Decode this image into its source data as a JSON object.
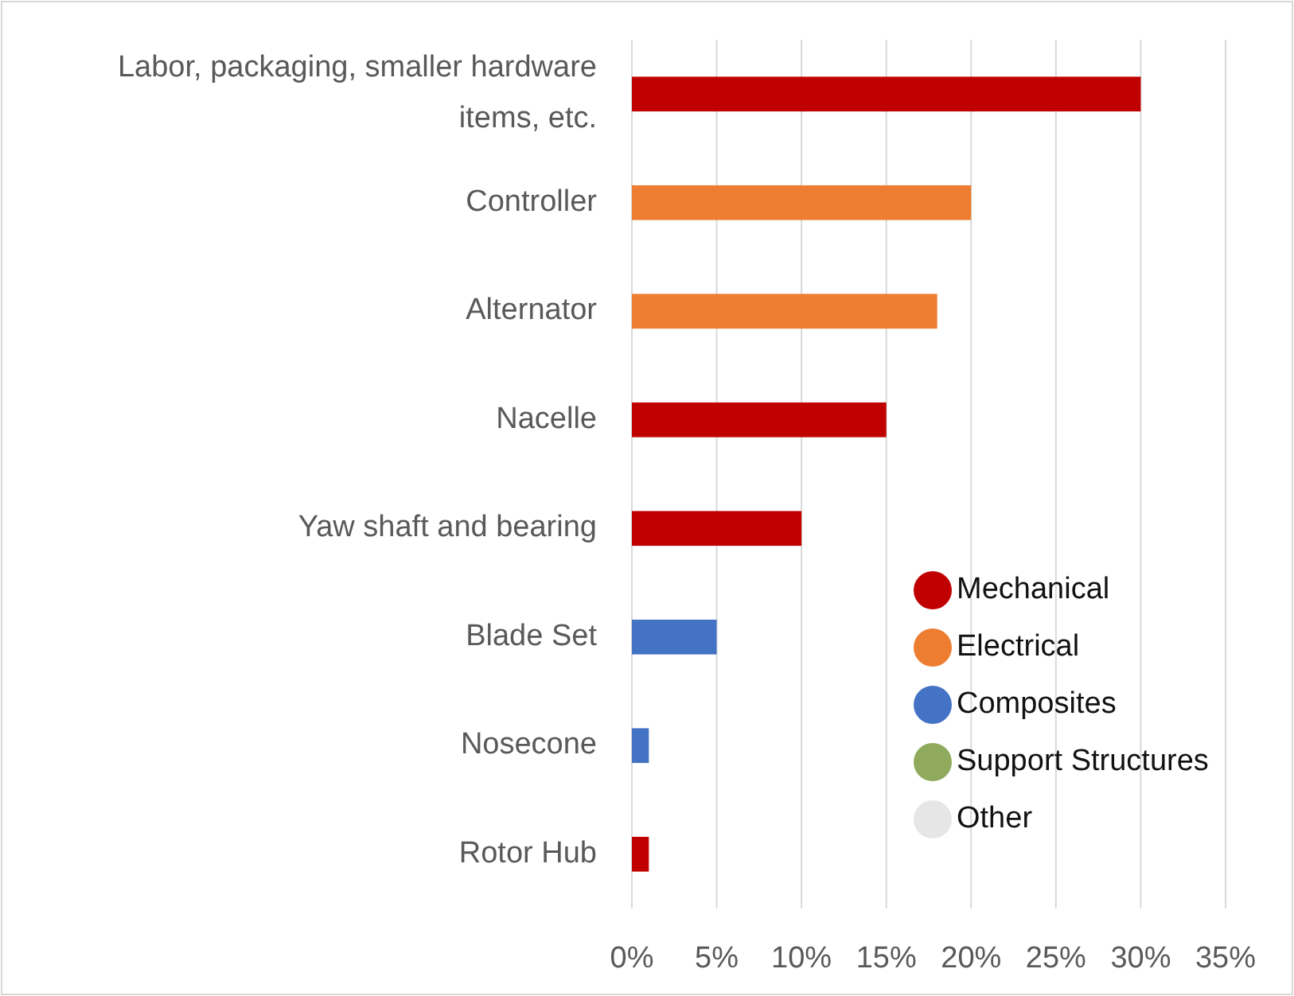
{
  "chart_data": {
    "type": "bar",
    "orientation": "horizontal",
    "stacked": true,
    "categories": [
      "Labor, packaging, smaller hardware items, etc.",
      "Controller",
      "Alternator",
      "Nacelle",
      "Yaw shaft and bearing",
      "Blade Set",
      "Nosecone",
      "Rotor Hub"
    ],
    "series": [
      {
        "name": "Mechanical",
        "color": "#c00000",
        "values": [
          30,
          null,
          null,
          15,
          10,
          null,
          null,
          1
        ]
      },
      {
        "name": "Electrical",
        "color": "#ed7d31",
        "values": [
          null,
          20,
          18,
          null,
          null,
          null,
          null,
          null
        ]
      },
      {
        "name": "Composites",
        "color": "#4472c4",
        "values": [
          null,
          null,
          null,
          null,
          null,
          5,
          1,
          null
        ]
      },
      {
        "name": "Support Structures",
        "color": "#8faa5c",
        "values": [
          null,
          null,
          null,
          null,
          null,
          null,
          null,
          null
        ]
      },
      {
        "name": "Other",
        "color": "#e6e6e6",
        "values": [
          null,
          null,
          null,
          null,
          null,
          null,
          null,
          null
        ]
      }
    ],
    "xlim": [
      0,
      35
    ],
    "xticks": [
      {
        "value": 0,
        "label": "0%"
      },
      {
        "value": 5,
        "label": "5%"
      },
      {
        "value": 10,
        "label": "10%"
      },
      {
        "value": 15,
        "label": "15%"
      },
      {
        "value": 20,
        "label": "20%"
      },
      {
        "value": 25,
        "label": "25%"
      },
      {
        "value": 30,
        "label": "30%"
      },
      {
        "value": 35,
        "label": "35%"
      }
    ],
    "grid": "x",
    "legend": "bottom right"
  }
}
